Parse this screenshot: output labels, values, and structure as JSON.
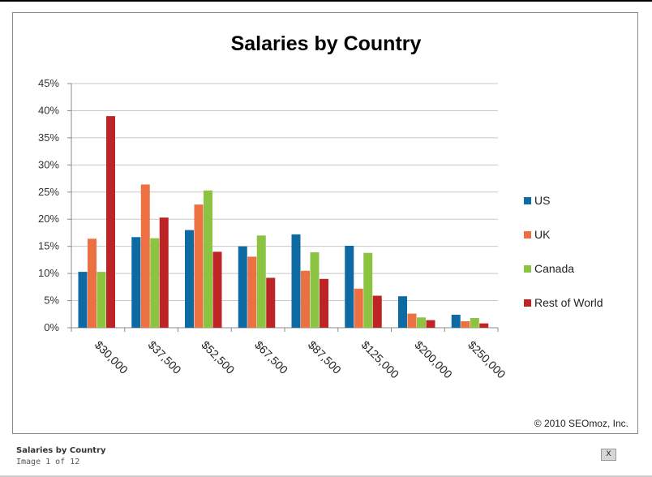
{
  "colors": {
    "US": "#0d6aa3",
    "UK": "#ec7142",
    "Canada": "#8cc442",
    "Rest of World": "#be2426"
  },
  "chart_data": {
    "type": "bar",
    "title": "Salaries by Country",
    "xlabel": "",
    "ylabel": "",
    "categories": [
      "$30,000",
      "$37,500",
      "$52,500",
      "$67,500",
      "$87,500",
      "$125,000",
      "$200,000",
      "$250,000"
    ],
    "series": [
      {
        "name": "US",
        "values": [
          10.3,
          16.7,
          18.0,
          15.0,
          17.2,
          15.1,
          5.8,
          2.4
        ]
      },
      {
        "name": "UK",
        "values": [
          16.4,
          26.4,
          22.7,
          13.1,
          10.5,
          7.2,
          2.6,
          1.2
        ]
      },
      {
        "name": "Canada",
        "values": [
          10.3,
          16.5,
          25.3,
          17.0,
          13.9,
          13.8,
          1.9,
          1.8
        ]
      },
      {
        "name": "Rest of World",
        "values": [
          39.0,
          20.3,
          14.0,
          9.2,
          9.0,
          5.9,
          1.4,
          0.8
        ]
      }
    ],
    "ylim": [
      0,
      45
    ],
    "y_ticks": [
      "0%",
      "5%",
      "10%",
      "15%",
      "20%",
      "25%",
      "30%",
      "35%",
      "40%",
      "45%"
    ],
    "grid": true,
    "legend_position": "right"
  },
  "copyright": "© 2010 SEOmoz,  Inc.",
  "caption": {
    "title": "Salaries by Country",
    "counter": "Image 1 of 12"
  },
  "close_label": "X"
}
